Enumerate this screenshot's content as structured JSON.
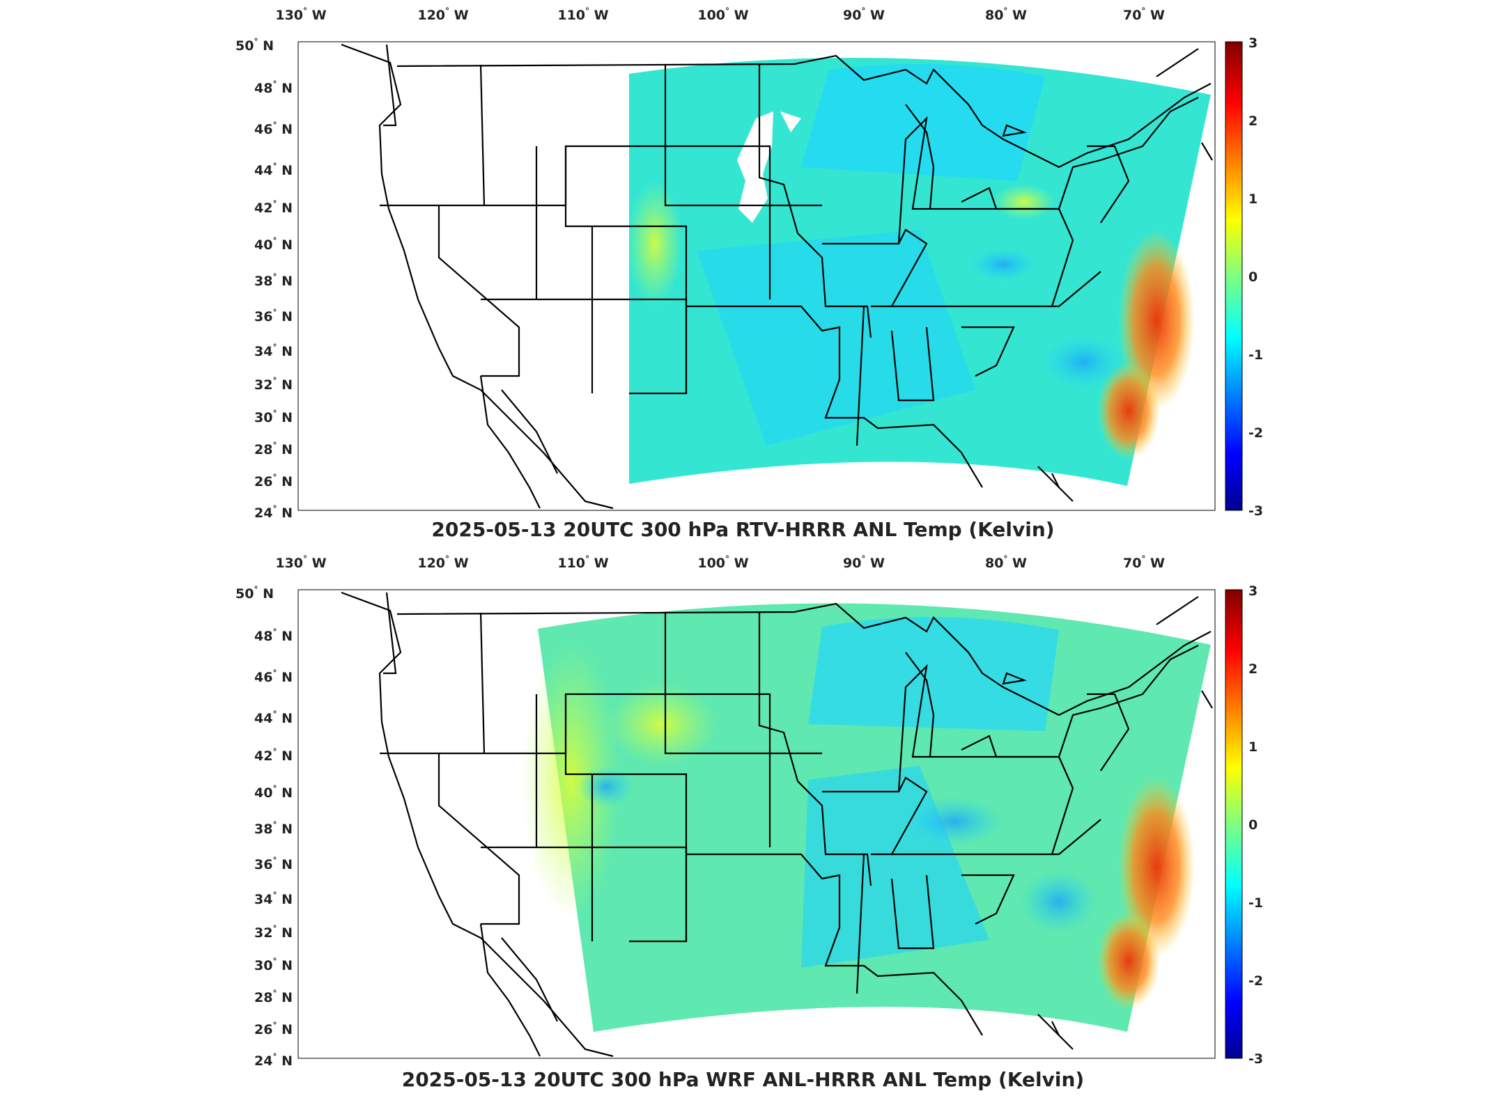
{
  "colormap": "jet",
  "colors": {
    "ocean_warm": "#ff7a10",
    "land_cool": "#28e0f0",
    "background": "#ffffff",
    "lines": "#000000"
  },
  "panels": [
    {
      "title": "2025-05-13 20UTC 300 hPa RTV-HRRR ANL Temp (Kelvin)",
      "lon_labels": [
        "130",
        "120",
        "110",
        "100",
        "90",
        "80",
        "70"
      ],
      "lon_suffix": "W",
      "lat_labels": [
        "50",
        "48",
        "46",
        "44",
        "42",
        "40",
        "38",
        "36",
        "34",
        "32",
        "30",
        "28",
        "26",
        "24"
      ],
      "lat_suffix": "N",
      "colorbar": {
        "ticks": [
          "3",
          "2",
          "1",
          "0",
          "-1",
          "-2",
          "-3"
        ],
        "range": [
          -3,
          3
        ]
      }
    },
    {
      "title": "2025-05-13 20UTC 300 hPa WRF ANL-HRRR ANL Temp (Kelvin)",
      "lon_labels": [
        "130",
        "120",
        "110",
        "100",
        "90",
        "80",
        "70"
      ],
      "lon_suffix": "W",
      "lat_labels": [
        "50",
        "48",
        "46",
        "44",
        "42",
        "40",
        "38",
        "36",
        "34",
        "32",
        "30",
        "28",
        "26",
        "24"
      ],
      "lat_suffix": "N",
      "colorbar": {
        "ticks": [
          "3",
          "2",
          "1",
          "0",
          "-1",
          "-2",
          "-3"
        ],
        "range": [
          -3,
          3
        ]
      }
    }
  ]
}
